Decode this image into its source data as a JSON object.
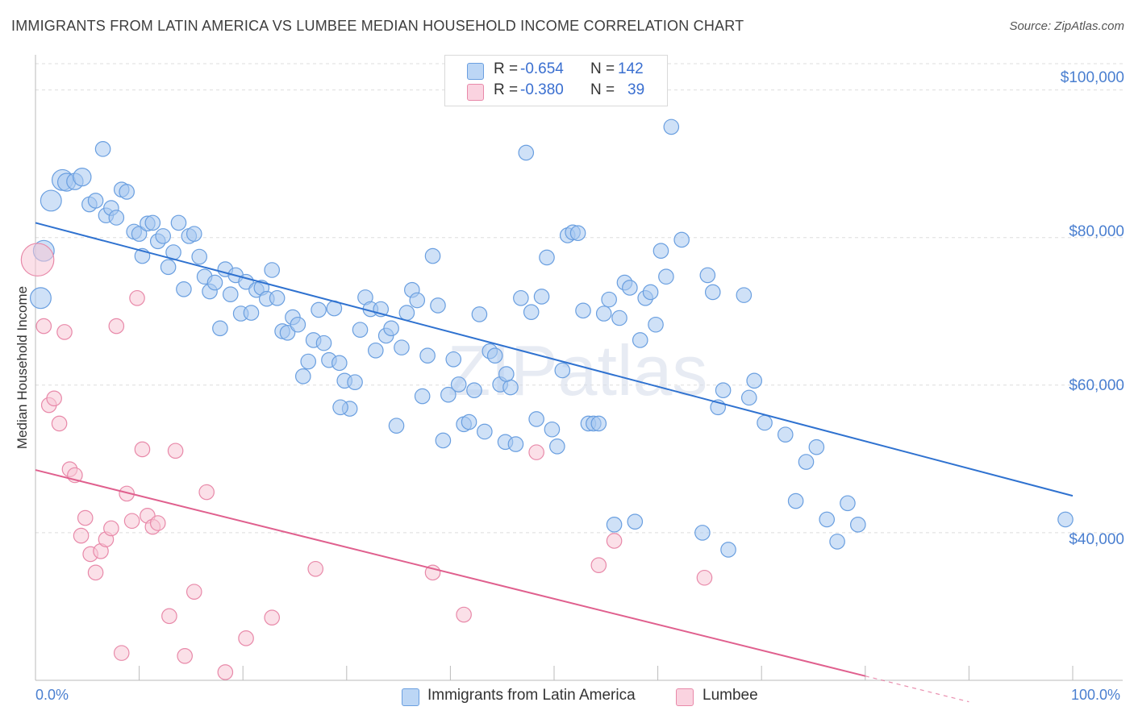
{
  "title": "IMMIGRANTS FROM LATIN AMERICA VS LUMBEE MEDIAN HOUSEHOLD INCOME CORRELATION CHART",
  "source": "Source: ZipAtlas.com",
  "watermark": "ZIPatlas",
  "colors": {
    "blue_fill": "#a8c8f0",
    "blue_stroke": "#6a9fe0",
    "blue_line": "#2f72d0",
    "pink_fill": "#f8c6d6",
    "pink_stroke": "#e889a9",
    "pink_line": "#e0608e",
    "tick_label": "#4a7fd0",
    "grid": "#dddddd"
  },
  "legend": {
    "rows": [
      {
        "r_label": "R = ",
        "r_value": "-0.654",
        "n_label": "N = ",
        "n_value": "142"
      },
      {
        "r_label": "R = ",
        "r_value": "-0.380",
        "n_label": "N = ",
        "n_value": "39"
      }
    ]
  },
  "bottom_legend": {
    "series1": "Immigrants from Latin America",
    "series2": "Lumbee"
  },
  "chart_data": {
    "type": "scatter",
    "title": "IMMIGRANTS FROM LATIN AMERICA VS LUMBEE MEDIAN HOUSEHOLD INCOME CORRELATION CHART",
    "xlabel": "",
    "ylabel": "Median Household Income",
    "xlim": [
      0,
      100
    ],
    "ylim": [
      20000,
      104000
    ],
    "x_tick_labels": [
      "0.0%",
      "100.0%"
    ],
    "y_ticks": [
      40000,
      60000,
      80000,
      100000
    ],
    "y_tick_labels": [
      "$40,000",
      "$60,000",
      "$80,000",
      "$100,000"
    ],
    "grid": true,
    "series": [
      {
        "name": "Immigrants from Latin America",
        "r": -0.654,
        "n": 142,
        "trend": {
          "x": [
            0,
            100
          ],
          "y": [
            82000,
            45000
          ],
          "dashed_from": null
        },
        "points": [
          [
            0.5,
            71800,
            14
          ],
          [
            0.8,
            78200,
            14
          ],
          [
            1.5,
            85000,
            14
          ],
          [
            2.6,
            87800,
            14
          ],
          [
            3.0,
            87500,
            12
          ],
          [
            3.8,
            87600,
            11
          ],
          [
            4.5,
            88200,
            12
          ],
          [
            5.2,
            84500,
            10
          ],
          [
            5.8,
            85000,
            10
          ],
          [
            6.5,
            92000,
            10
          ],
          [
            6.8,
            83000,
            10
          ],
          [
            7.3,
            84000,
            10
          ],
          [
            7.8,
            82700,
            10
          ],
          [
            8.3,
            86500,
            10
          ],
          [
            8.8,
            86200,
            10
          ],
          [
            9.5,
            80800,
            10
          ],
          [
            10.0,
            80500,
            10
          ],
          [
            10.3,
            77500,
            10
          ],
          [
            10.8,
            81900,
            10
          ],
          [
            11.3,
            82000,
            10
          ],
          [
            11.8,
            79500,
            10
          ],
          [
            12.3,
            80200,
            10
          ],
          [
            12.8,
            76000,
            10
          ],
          [
            13.3,
            78000,
            10
          ],
          [
            13.8,
            82000,
            10
          ],
          [
            14.3,
            73000,
            10
          ],
          [
            14.8,
            80200,
            10
          ],
          [
            15.3,
            80500,
            10
          ],
          [
            15.8,
            77400,
            10
          ],
          [
            16.3,
            74700,
            10
          ],
          [
            16.8,
            72700,
            10
          ],
          [
            17.3,
            73900,
            10
          ],
          [
            17.8,
            67700,
            10
          ],
          [
            18.3,
            75700,
            10
          ],
          [
            18.8,
            72300,
            10
          ],
          [
            19.3,
            74900,
            10
          ],
          [
            19.8,
            69700,
            10
          ],
          [
            20.3,
            74000,
            10
          ],
          [
            20.8,
            69800,
            10
          ],
          [
            21.3,
            72900,
            10
          ],
          [
            21.8,
            73200,
            10
          ],
          [
            22.3,
            71700,
            10
          ],
          [
            22.8,
            75600,
            10
          ],
          [
            23.3,
            71800,
            10
          ],
          [
            23.8,
            67300,
            10
          ],
          [
            24.3,
            67100,
            10
          ],
          [
            24.8,
            69200,
            10
          ],
          [
            25.3,
            68200,
            10
          ],
          [
            25.8,
            61200,
            10
          ],
          [
            26.3,
            63200,
            10
          ],
          [
            26.8,
            66100,
            10
          ],
          [
            27.3,
            70200,
            10
          ],
          [
            27.8,
            65700,
            10
          ],
          [
            28.3,
            63400,
            10
          ],
          [
            28.8,
            70400,
            10
          ],
          [
            29.3,
            63000,
            10
          ],
          [
            29.8,
            60600,
            10
          ],
          [
            30.3,
            56800,
            10
          ],
          [
            30.8,
            60400,
            10
          ],
          [
            31.3,
            67500,
            10
          ],
          [
            31.8,
            71900,
            10
          ],
          [
            32.3,
            70300,
            10
          ],
          [
            32.8,
            64700,
            10
          ],
          [
            33.3,
            70300,
            10
          ],
          [
            33.8,
            66700,
            10
          ],
          [
            34.3,
            67700,
            10
          ],
          [
            34.8,
            54500,
            10
          ],
          [
            35.3,
            65100,
            10
          ],
          [
            35.8,
            69800,
            10
          ],
          [
            36.3,
            72900,
            10
          ],
          [
            36.8,
            71500,
            10
          ],
          [
            37.3,
            58500,
            10
          ],
          [
            37.8,
            64000,
            10
          ],
          [
            38.3,
            77500,
            10
          ],
          [
            38.8,
            70800,
            10
          ],
          [
            39.3,
            52500,
            10
          ],
          [
            39.8,
            58700,
            10
          ],
          [
            40.3,
            63500,
            10
          ],
          [
            40.8,
            60100,
            10
          ],
          [
            41.3,
            54700,
            10
          ],
          [
            41.8,
            55000,
            10
          ],
          [
            42.3,
            59300,
            10
          ],
          [
            42.8,
            69600,
            10
          ],
          [
            43.3,
            53700,
            10
          ],
          [
            43.8,
            64600,
            10
          ],
          [
            44.3,
            64000,
            10
          ],
          [
            44.8,
            60100,
            10
          ],
          [
            45.3,
            52300,
            10
          ],
          [
            45.8,
            59700,
            10
          ],
          [
            46.3,
            52000,
            10
          ],
          [
            46.8,
            71800,
            10
          ],
          [
            47.3,
            91500,
            10
          ],
          [
            47.8,
            69900,
            10
          ],
          [
            48.3,
            55400,
            10
          ],
          [
            48.8,
            72000,
            10
          ],
          [
            49.3,
            77300,
            10
          ],
          [
            49.8,
            54000,
            10
          ],
          [
            50.3,
            51700,
            10
          ],
          [
            50.8,
            62000,
            10
          ],
          [
            51.3,
            80300,
            10
          ],
          [
            51.8,
            80700,
            10
          ],
          [
            52.3,
            80600,
            10
          ],
          [
            52.8,
            70100,
            10
          ],
          [
            53.3,
            54800,
            10
          ],
          [
            53.8,
            54800,
            10
          ],
          [
            54.3,
            54800,
            10
          ],
          [
            54.8,
            69700,
            10
          ],
          [
            55.3,
            71600,
            10
          ],
          [
            55.8,
            41100,
            10
          ],
          [
            56.3,
            69100,
            10
          ],
          [
            56.8,
            73900,
            10
          ],
          [
            57.3,
            73200,
            10
          ],
          [
            57.8,
            41500,
            10
          ],
          [
            58.3,
            66100,
            10
          ],
          [
            58.8,
            71800,
            10
          ],
          [
            59.3,
            72600,
            10
          ],
          [
            59.8,
            68200,
            10
          ],
          [
            60.3,
            78200,
            10
          ],
          [
            60.8,
            74700,
            10
          ],
          [
            61.3,
            95000,
            10
          ],
          [
            62.3,
            79700,
            10
          ],
          [
            64.3,
            40000,
            10
          ],
          [
            64.8,
            74900,
            10
          ],
          [
            65.3,
            72600,
            10
          ],
          [
            65.8,
            57000,
            10
          ],
          [
            66.3,
            59300,
            10
          ],
          [
            66.8,
            37700,
            10
          ],
          [
            68.3,
            72200,
            10
          ],
          [
            68.8,
            58300,
            10
          ],
          [
            69.3,
            60600,
            10
          ],
          [
            70.3,
            54900,
            10
          ],
          [
            72.3,
            53300,
            10
          ],
          [
            73.3,
            44300,
            10
          ],
          [
            74.3,
            49600,
            10
          ],
          [
            75.3,
            51600,
            10
          ],
          [
            76.3,
            41800,
            10
          ],
          [
            77.3,
            38800,
            10
          ],
          [
            78.3,
            44000,
            10
          ],
          [
            79.3,
            41100,
            10
          ],
          [
            99.3,
            41800,
            10
          ],
          [
            29.4,
            57000,
            10
          ],
          [
            45.4,
            61500,
            10
          ]
        ]
      },
      {
        "name": "Lumbee",
        "r": -0.38,
        "n": 39,
        "trend": {
          "x": [
            0,
            100
          ],
          "y": [
            48500,
            13600
          ],
          "dashed_from": 80
        },
        "points": [
          [
            0.2,
            77000,
            22
          ],
          [
            0.8,
            68000,
            10
          ],
          [
            1.3,
            57300,
            10
          ],
          [
            1.8,
            58200,
            10
          ],
          [
            2.3,
            54800,
            10
          ],
          [
            2.8,
            67200,
            10
          ],
          [
            3.3,
            48600,
            10
          ],
          [
            3.8,
            47800,
            10
          ],
          [
            4.4,
            39600,
            10
          ],
          [
            4.8,
            42000,
            10
          ],
          [
            5.3,
            37100,
            10
          ],
          [
            5.8,
            34600,
            10
          ],
          [
            6.3,
            37500,
            10
          ],
          [
            6.8,
            39100,
            10
          ],
          [
            7.3,
            40600,
            10
          ],
          [
            7.8,
            68000,
            10
          ],
          [
            8.3,
            23700,
            10
          ],
          [
            8.8,
            45300,
            10
          ],
          [
            9.3,
            41600,
            10
          ],
          [
            9.8,
            71800,
            10
          ],
          [
            10.3,
            51300,
            10
          ],
          [
            10.8,
            42300,
            10
          ],
          [
            11.3,
            40800,
            10
          ],
          [
            11.8,
            41300,
            10
          ],
          [
            12.9,
            28700,
            10
          ],
          [
            13.5,
            51100,
            10
          ],
          [
            14.4,
            23300,
            10
          ],
          [
            15.3,
            32000,
            10
          ],
          [
            16.5,
            45500,
            10
          ],
          [
            18.3,
            21100,
            10
          ],
          [
            20.3,
            25700,
            10
          ],
          [
            22.8,
            28500,
            10
          ],
          [
            27.0,
            35100,
            10
          ],
          [
            38.3,
            34600,
            10
          ],
          [
            41.3,
            28900,
            10
          ],
          [
            48.3,
            50900,
            10
          ],
          [
            54.3,
            35600,
            10
          ],
          [
            55.8,
            38900,
            10
          ],
          [
            64.5,
            33900,
            10
          ]
        ]
      }
    ]
  }
}
